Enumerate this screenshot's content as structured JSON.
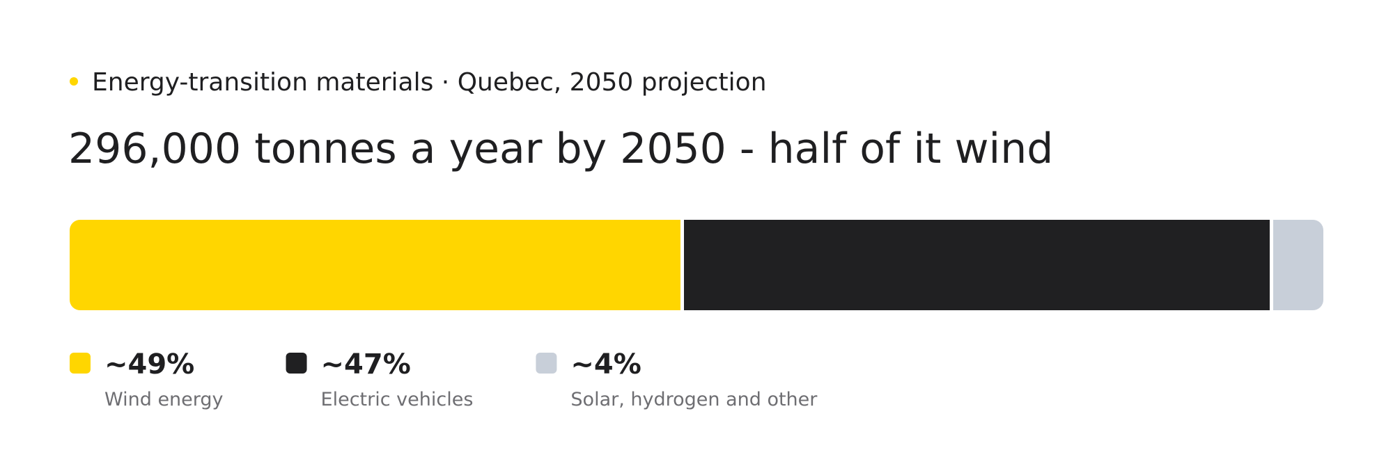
{
  "chart_data": {
    "type": "stacked-bar",
    "subtitle": "Energy-transition materials · Quebec, 2050 projection",
    "title": "296,000 tonnes a year by 2050 - half of it wind",
    "series": [
      {
        "name": "Wind energy",
        "color": "#ffd600",
        "values": [
          49
        ],
        "value_labels": [
          "~49%"
        ]
      },
      {
        "name": "Electric vehicles",
        "color": "#202022",
        "values": [
          47
        ],
        "value_labels": [
          "~47%"
        ]
      },
      {
        "name": "Solar, hydrogen and other",
        "color": "#c8cfd9",
        "values": [
          4
        ],
        "value_labels": [
          "~4%"
        ]
      }
    ]
  }
}
